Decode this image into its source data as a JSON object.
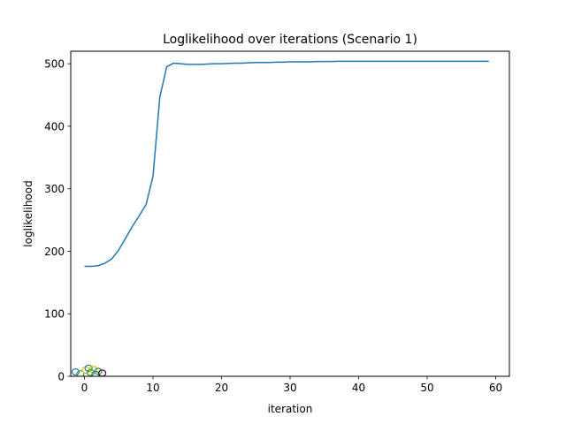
{
  "chart_data": {
    "type": "line",
    "title": "Loglikelihood over iterations (Scenario 1)",
    "xlabel": "iteration",
    "ylabel": "loglikelihood",
    "xlim": [
      -2,
      62
    ],
    "ylim": [
      0,
      520
    ],
    "xticks": [
      0,
      10,
      20,
      30,
      40,
      50,
      60
    ],
    "yticks": [
      0,
      100,
      200,
      300,
      400,
      500
    ],
    "grid": false,
    "series": [
      {
        "color": "#1f77b4",
        "x": [
          0,
          1,
          2,
          3,
          4,
          5,
          6,
          7,
          8,
          9,
          10,
          11,
          12,
          13,
          14,
          15,
          16,
          17,
          18,
          19,
          20,
          21,
          22,
          23,
          24,
          25,
          26,
          27,
          28,
          29,
          30,
          31,
          32,
          33,
          34,
          35,
          36,
          37,
          38,
          39,
          40,
          41,
          42,
          43,
          44,
          45,
          46,
          47,
          48,
          49,
          50,
          51,
          52,
          53,
          54,
          55,
          56,
          57,
          58,
          59
        ],
        "y": [
          176,
          176,
          177,
          181,
          188,
          202,
          221,
          240,
          257,
          275,
          320,
          447,
          495,
          501,
          500,
          499,
          499,
          499,
          499.5,
          500,
          500,
          500.5,
          501,
          501,
          501.5,
          502,
          502,
          502,
          502.5,
          502.5,
          503,
          503,
          503,
          503,
          503.5,
          503.5,
          503.5,
          504,
          504,
          504,
          504,
          504,
          504,
          504,
          504,
          504,
          504,
          504,
          504,
          504,
          504,
          504,
          504,
          504,
          504,
          504,
          504,
          504,
          504,
          504
        ]
      }
    ],
    "artifacts": [
      {
        "x": -1.3,
        "y": 7,
        "color": "#1f77b4"
      },
      {
        "x": -0.6,
        "y": 4,
        "color": "#2ca02c"
      },
      {
        "x": 0.2,
        "y": 10,
        "color": "#d6c400"
      },
      {
        "x": 0.6,
        "y": 13,
        "color": "#1f77b4"
      },
      {
        "x": 0.9,
        "y": 6,
        "color": "#2ca02c"
      },
      {
        "x": 1.3,
        "y": 11,
        "color": "#d6c400"
      },
      {
        "x": 1.6,
        "y": 3,
        "color": "#1f77b4"
      },
      {
        "x": 2.0,
        "y": 8,
        "color": "#2ca02c"
      },
      {
        "x": 2.6,
        "y": 5,
        "color": "#440154"
      }
    ]
  }
}
